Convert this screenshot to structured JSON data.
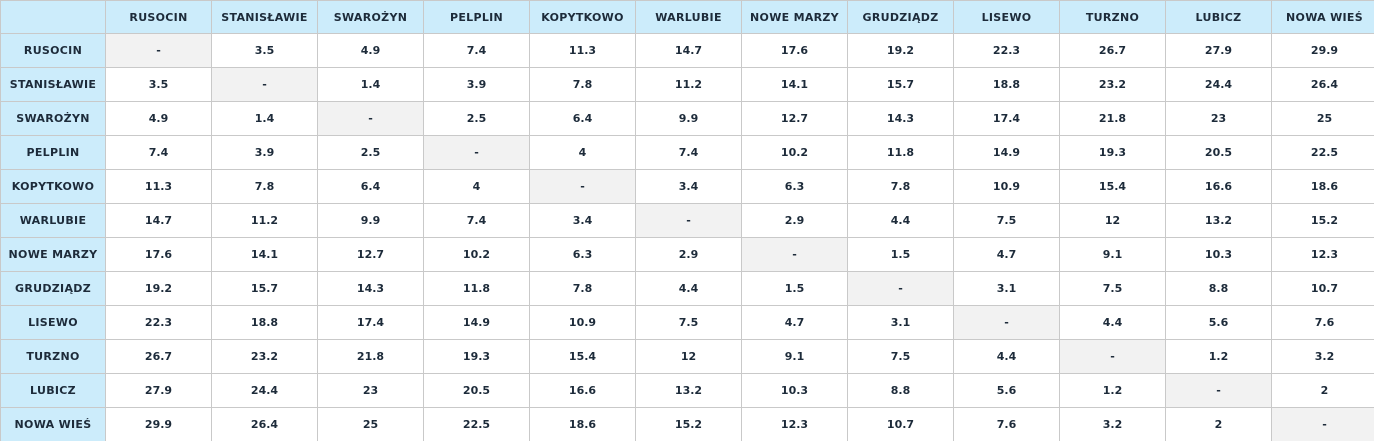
{
  "table": {
    "columns": [
      "RUSOCIN",
      "STANISŁAWIE",
      "SWAROŻYN",
      "PELPLIN",
      "KOPYTKOWO",
      "WARLUBIE",
      "NOWE MARZY",
      "GRUDZIĄDZ",
      "LISEWO",
      "TURZNO",
      "LUBICZ",
      "NOWA WIEŚ"
    ],
    "rows": [
      {
        "label": "RUSOCIN",
        "cells": [
          "-",
          "3.5",
          "4.9",
          "7.4",
          "11.3",
          "14.7",
          "17.6",
          "19.2",
          "22.3",
          "26.7",
          "27.9",
          "29.9"
        ]
      },
      {
        "label": "STANISŁAWIE",
        "cells": [
          "3.5",
          "-",
          "1.4",
          "3.9",
          "7.8",
          "11.2",
          "14.1",
          "15.7",
          "18.8",
          "23.2",
          "24.4",
          "26.4"
        ]
      },
      {
        "label": "SWAROŻYN",
        "cells": [
          "4.9",
          "1.4",
          "-",
          "2.5",
          "6.4",
          "9.9",
          "12.7",
          "14.3",
          "17.4",
          "21.8",
          "23",
          "25"
        ]
      },
      {
        "label": "PELPLIN",
        "cells": [
          "7.4",
          "3.9",
          "2.5",
          "-",
          "4",
          "7.4",
          "10.2",
          "11.8",
          "14.9",
          "19.3",
          "20.5",
          "22.5"
        ]
      },
      {
        "label": "KOPYTKOWO",
        "cells": [
          "11.3",
          "7.8",
          "6.4",
          "4",
          "-",
          "3.4",
          "6.3",
          "7.8",
          "10.9",
          "15.4",
          "16.6",
          "18.6"
        ]
      },
      {
        "label": "WARLUBIE",
        "cells": [
          "14.7",
          "11.2",
          "9.9",
          "7.4",
          "3.4",
          "-",
          "2.9",
          "4.4",
          "7.5",
          "12",
          "13.2",
          "15.2"
        ]
      },
      {
        "label": "NOWE MARZY",
        "cells": [
          "17.6",
          "14.1",
          "12.7",
          "10.2",
          "6.3",
          "2.9",
          "-",
          "1.5",
          "4.7",
          "9.1",
          "10.3",
          "12.3"
        ]
      },
      {
        "label": "GRUDZIĄDZ",
        "cells": [
          "19.2",
          "15.7",
          "14.3",
          "11.8",
          "7.8",
          "4.4",
          "1.5",
          "-",
          "3.1",
          "7.5",
          "8.8",
          "10.7"
        ]
      },
      {
        "label": "LISEWO",
        "cells": [
          "22.3",
          "18.8",
          "17.4",
          "14.9",
          "10.9",
          "7.5",
          "4.7",
          "3.1",
          "-",
          "4.4",
          "5.6",
          "7.6"
        ]
      },
      {
        "label": "TURZNO",
        "cells": [
          "26.7",
          "23.2",
          "21.8",
          "19.3",
          "15.4",
          "12",
          "9.1",
          "7.5",
          "4.4",
          "-",
          "1.2",
          "3.2"
        ]
      },
      {
        "label": "LUBICZ",
        "cells": [
          "27.9",
          "24.4",
          "23",
          "20.5",
          "16.6",
          "13.2",
          "10.3",
          "8.8",
          "5.6",
          "1.2",
          "-",
          "2"
        ]
      },
      {
        "label": "NOWA WIEŚ",
        "cells": [
          "29.9",
          "26.4",
          "25",
          "22.5",
          "18.6",
          "15.2",
          "12.3",
          "10.7",
          "7.6",
          "3.2",
          "2",
          "-"
        ]
      }
    ]
  },
  "colors": {
    "header_background": "#ccecfb",
    "diagonal_background": "#f2f2f2",
    "text": "#1d2b3a",
    "grid_lines": "#c9c9c9"
  }
}
